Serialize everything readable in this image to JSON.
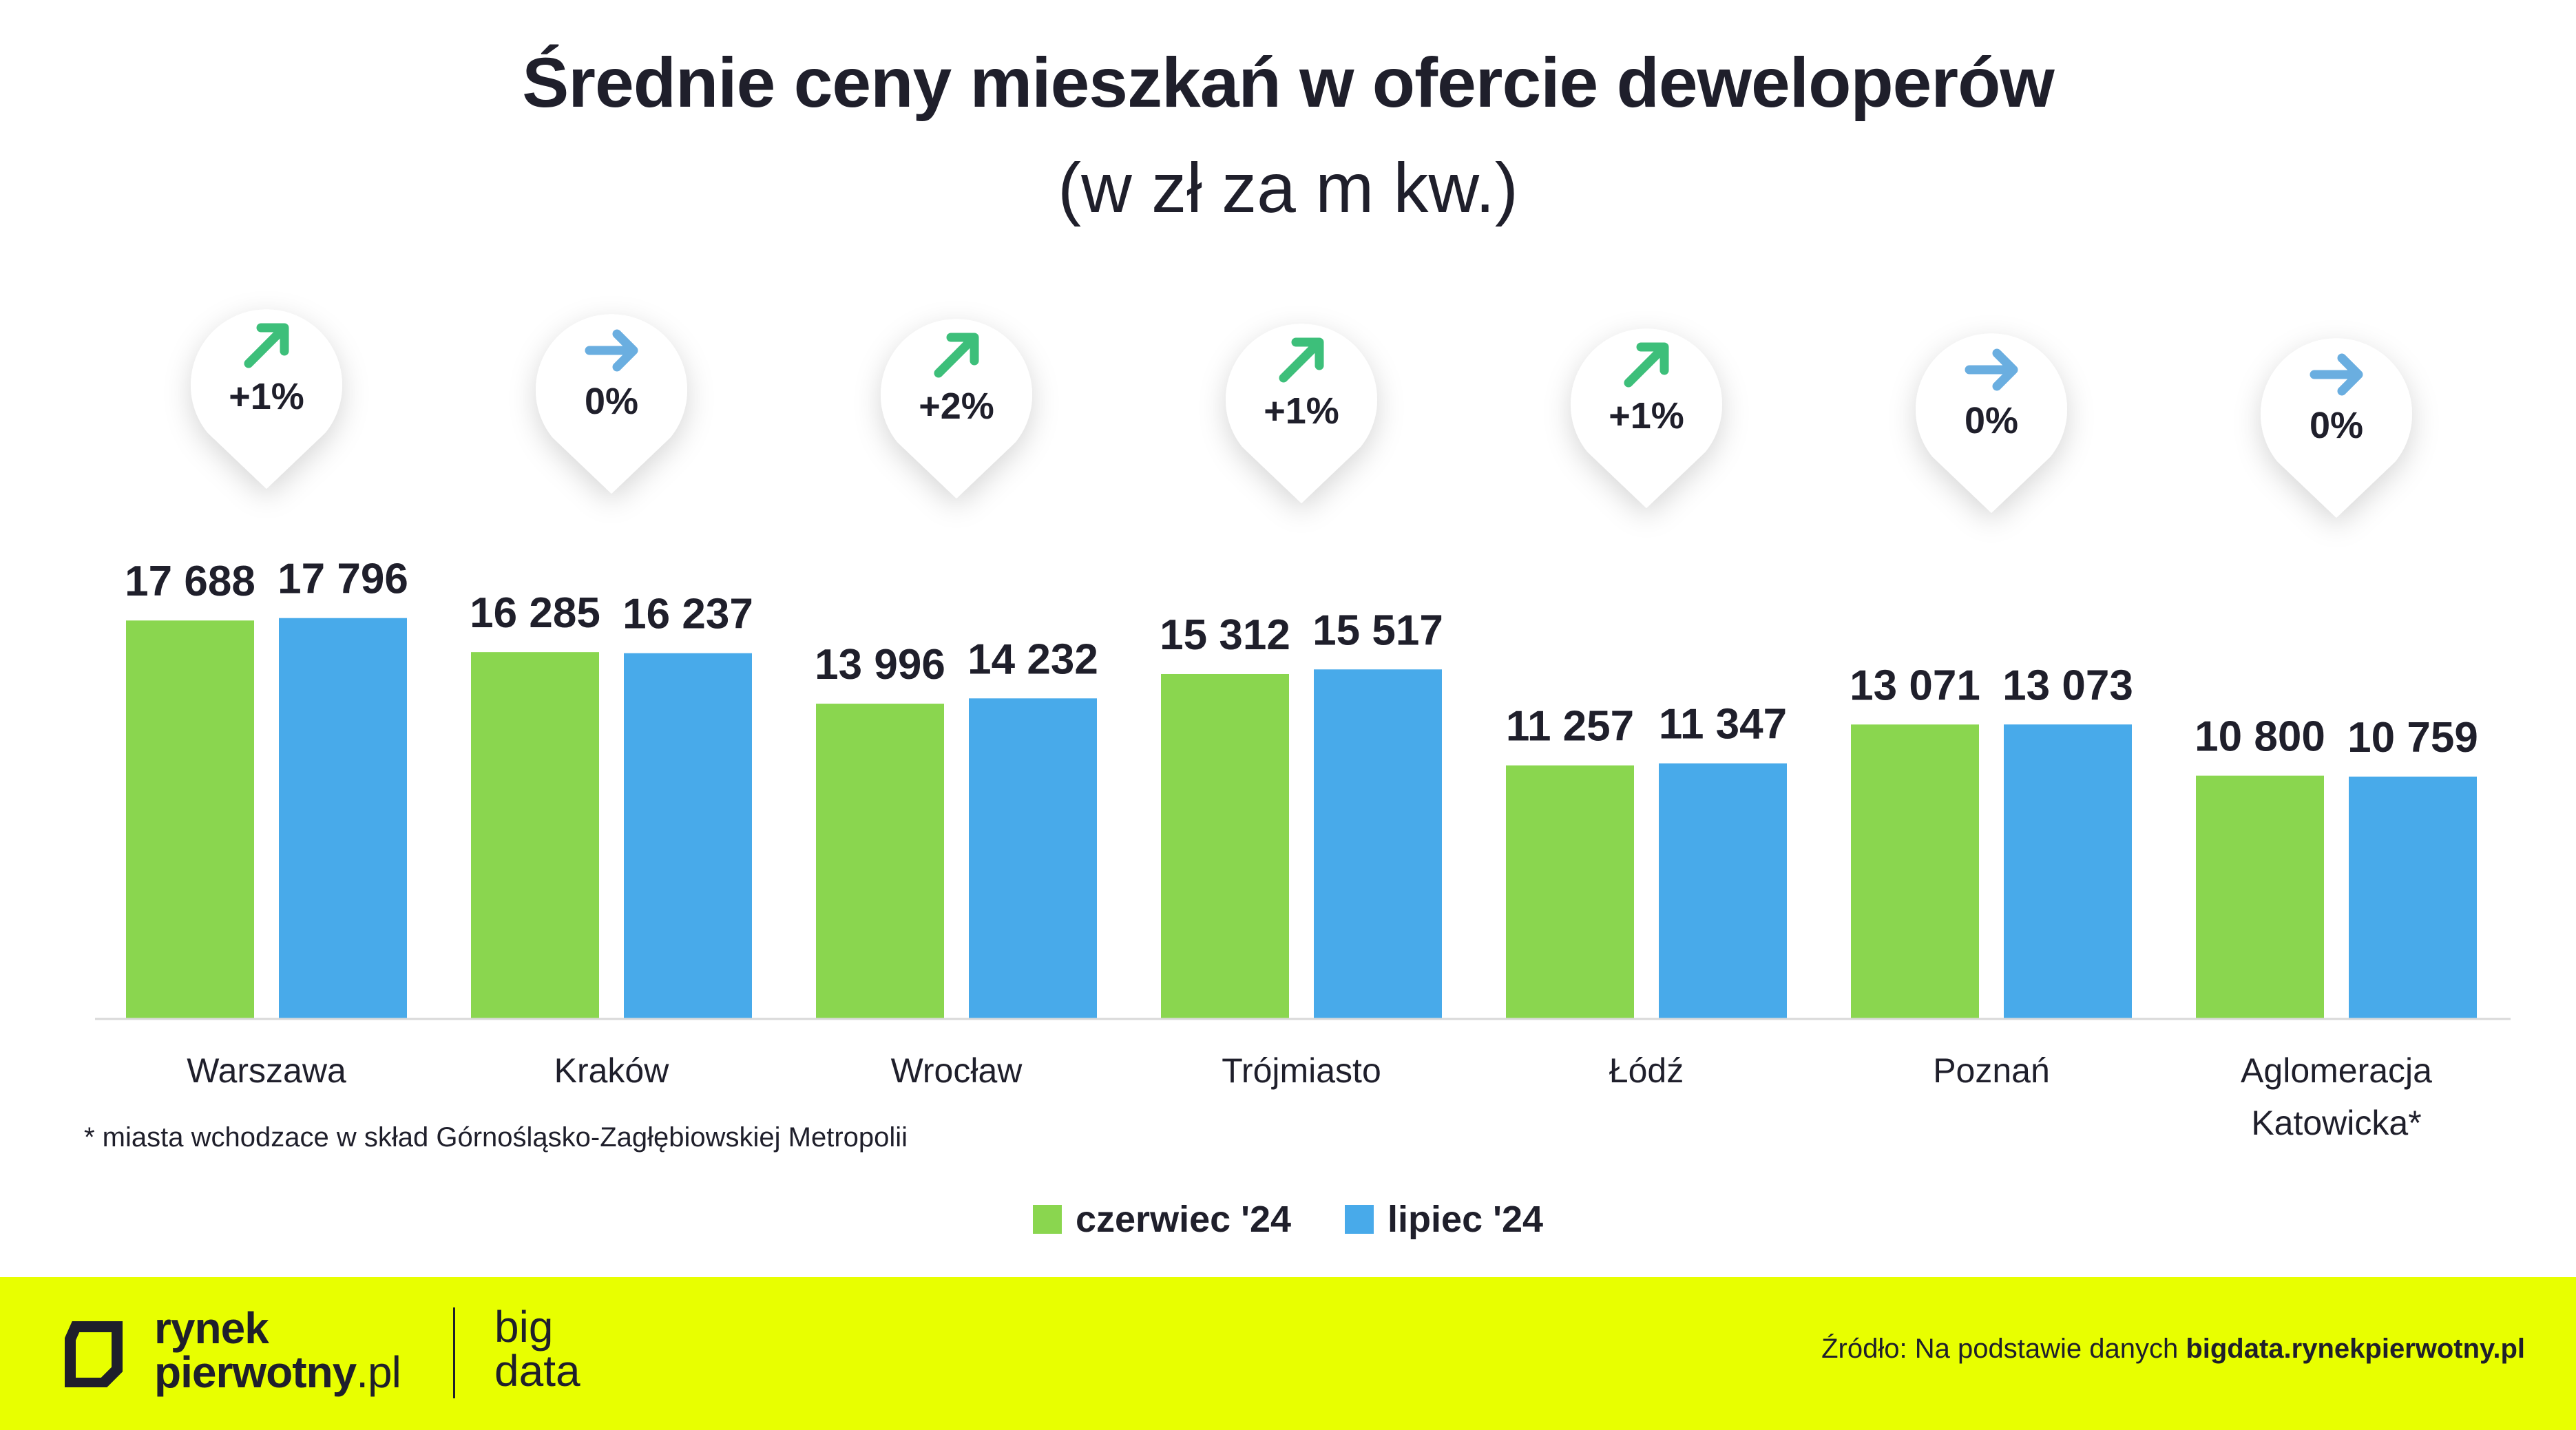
{
  "chart_data": {
    "type": "bar",
    "title": "Średnie ceny mieszkań w ofercie deweloperów",
    "subtitle": "(w zł za m kw.)",
    "categories": [
      "Warszawa",
      "Kraków",
      "Wrocław",
      "Trójmiasto",
      "Łódź",
      "Poznań",
      "Aglomeracja Katowicka*"
    ],
    "category_lines": [
      [
        "Warszawa"
      ],
      [
        "Kraków"
      ],
      [
        "Wrocław"
      ],
      [
        "Trójmiasto"
      ],
      [
        "Łódź"
      ],
      [
        "Poznań"
      ],
      [
        "Aglomeracja",
        "Katowicka*"
      ]
    ],
    "series": [
      {
        "name": "czerwiec '24",
        "color": "#8ad64f",
        "values": [
          17688,
          16285,
          13996,
          15312,
          11257,
          13071,
          10800
        ],
        "labels": [
          "17 688",
          "16 285",
          "13 996",
          "15 312",
          "11 257",
          "13 071",
          "10 800"
        ]
      },
      {
        "name": "lipiec '24",
        "color": "#48aaea",
        "values": [
          17796,
          16237,
          14232,
          15517,
          11347,
          13073,
          10759
        ],
        "labels": [
          "17 796",
          "16 237",
          "14 232",
          "15 517",
          "11 347",
          "13 073",
          "10 759"
        ]
      }
    ],
    "changes": [
      {
        "label": "+1%",
        "direction": "up",
        "color": "#3dbf7a"
      },
      {
        "label": "0%",
        "direction": "flat",
        "color": "#6aaee0"
      },
      {
        "label": "+2%",
        "direction": "up",
        "color": "#3dbf7a"
      },
      {
        "label": "+1%",
        "direction": "up",
        "color": "#3dbf7a"
      },
      {
        "label": "+1%",
        "direction": "up",
        "color": "#3dbf7a"
      },
      {
        "label": "0%",
        "direction": "flat",
        "color": "#6aaee0"
      },
      {
        "label": "0%",
        "direction": "flat",
        "color": "#6aaee0"
      }
    ],
    "legend_position": "bottom-center",
    "grid": false
  },
  "footnote": "* miasta wchodzace w skład Górnośląsko-Zagłębiowskiej Metropolii",
  "legend": {
    "items": [
      {
        "label": "czerwiec '24",
        "color": "#8ad64f"
      },
      {
        "label": "lipiec '24",
        "color": "#48aaea"
      }
    ]
  },
  "footer": {
    "background": "#e8ff00",
    "logo_line1": "rynek",
    "logo_line2": "pierwotny",
    "logo_suffix": ".pl",
    "logo_bigdata_line1": "big",
    "logo_bigdata_line2": "data",
    "source_prefix": "Źródło: Na podstawie danych ",
    "source_bold": "bigdata.rynekpierwotny.pl"
  }
}
